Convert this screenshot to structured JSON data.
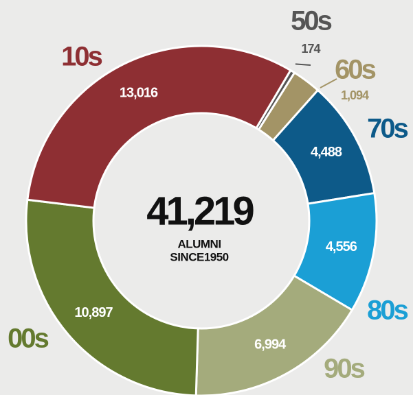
{
  "chart_data": {
    "type": "donut",
    "categories": [
      "50s",
      "60s",
      "70s",
      "80s",
      "90s",
      "00s",
      "10s"
    ],
    "values": [
      174,
      1094,
      4488,
      4556,
      6994,
      10897,
      13016
    ],
    "value_labels": [
      "174",
      "1,094",
      "4,488",
      "4,556",
      "6,994",
      "10,897",
      "13,016"
    ],
    "colors": [
      "#555555",
      "#a39466",
      "#0d5a89",
      "#1b9fd5",
      "#a4ab7c",
      "#647a2f",
      "#8e2f33"
    ],
    "center": {
      "value": 41219,
      "label": "41,219"
    },
    "center_lines": [
      "ALUMNI",
      "SINCE1950"
    ]
  }
}
